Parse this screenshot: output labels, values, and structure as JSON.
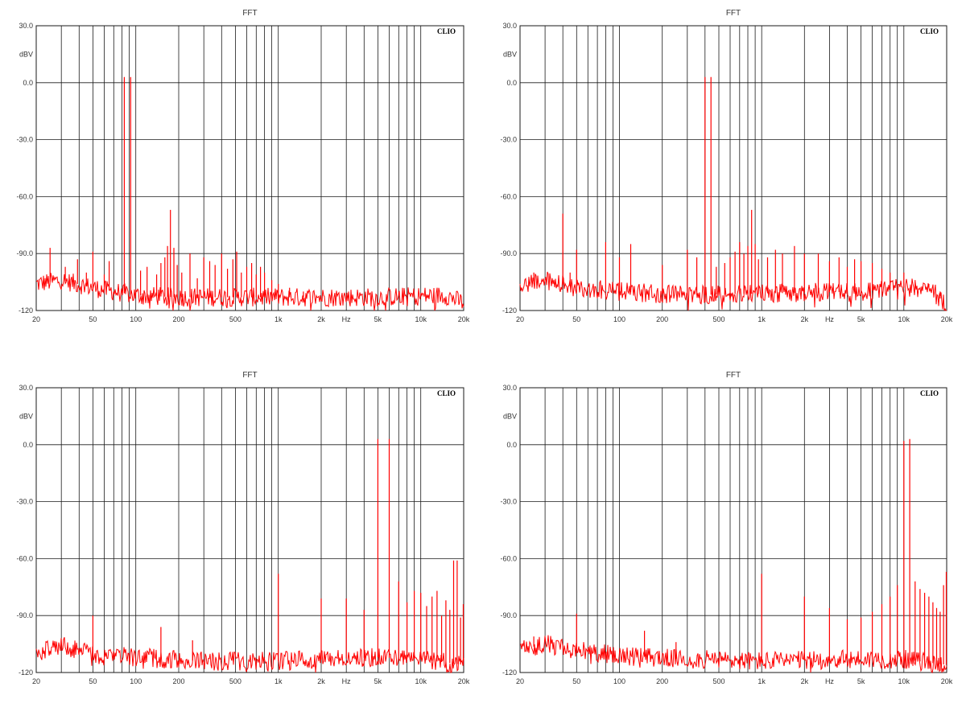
{
  "colors": {
    "trace": "#ff0000",
    "grid": "#1a1a1a",
    "background": "#ffffff"
  },
  "chart_data": [
    {
      "type": "line",
      "title": "FFT",
      "brand": "CLIO",
      "ylabel": "dBV",
      "xlabel": "Hz",
      "xscale": "log",
      "xlim": [
        20,
        20000
      ],
      "ylim": [
        -120,
        30
      ],
      "yticks": [
        30,
        0,
        -30,
        -60,
        -90,
        -120
      ],
      "ytick_labels": [
        "30.0",
        "0.0",
        "-30.0",
        "-60.0",
        "-90.0",
        "-120"
      ],
      "xtick_labels": [
        {
          "f": 20,
          "label": "20"
        },
        {
          "f": 50,
          "label": "50"
        },
        {
          "f": 100,
          "label": "100"
        },
        {
          "f": 200,
          "label": "200"
        },
        {
          "f": 500,
          "label": "500"
        },
        {
          "f": 1000,
          "label": "1k"
        },
        {
          "f": 2000,
          "label": "2k"
        },
        {
          "f": 5000,
          "label": "5k"
        },
        {
          "f": 10000,
          "label": "10k"
        },
        {
          "f": 20000,
          "label": "20k"
        }
      ],
      "grid": true,
      "noise": {
        "points": [
          [
            20,
            -106
          ],
          [
            30,
            -104
          ],
          [
            50,
            -108
          ],
          [
            100,
            -112
          ],
          [
            200,
            -113
          ],
          [
            1000,
            -113
          ],
          [
            5000,
            -113
          ],
          [
            15000,
            -112
          ],
          [
            20000,
            -116
          ]
        ],
        "spread": 5
      },
      "peaks": [
        [
          25,
          -87
        ],
        [
          32,
          -97
        ],
        [
          39,
          -93
        ],
        [
          45,
          -100
        ],
        [
          50,
          -89
        ],
        [
          60,
          -101
        ],
        [
          65,
          -94
        ],
        [
          83,
          3
        ],
        [
          92,
          3
        ],
        [
          108,
          -99
        ],
        [
          120,
          -97
        ],
        [
          140,
          -101
        ],
        [
          150,
          -95
        ],
        [
          160,
          -92
        ],
        [
          167,
          -86
        ],
        [
          175,
          -67
        ],
        [
          185,
          -87
        ],
        [
          195,
          -96
        ],
        [
          210,
          -100
        ],
        [
          240,
          -90
        ],
        [
          270,
          -103
        ],
        [
          300,
          -92
        ],
        [
          330,
          -94
        ],
        [
          360,
          -96
        ],
        [
          400,
          -90
        ],
        [
          440,
          -98
        ],
        [
          480,
          -93
        ],
        [
          510,
          -89
        ],
        [
          550,
          -100
        ],
        [
          600,
          -97
        ],
        [
          650,
          -95
        ],
        [
          700,
          -101
        ],
        [
          750,
          -97
        ],
        [
          800,
          -100
        ],
        [
          900,
          -104
        ],
        [
          1000,
          -106
        ],
        [
          1200,
          -108
        ],
        [
          1500,
          -110
        ]
      ]
    },
    {
      "type": "line",
      "title": "FFT",
      "brand": "CLIO",
      "ylabel": "dBV",
      "xlabel": "Hz",
      "xscale": "log",
      "xlim": [
        20,
        20000
      ],
      "ylim": [
        -120,
        30
      ],
      "yticks": [
        30,
        0,
        -30,
        -60,
        -90,
        -120
      ],
      "ytick_labels": [
        "30.0",
        "0.0",
        "-30.0",
        "-60.0",
        "-90.0",
        "-120"
      ],
      "xtick_labels": [
        {
          "f": 20,
          "label": "20"
        },
        {
          "f": 50,
          "label": "50"
        },
        {
          "f": 100,
          "label": "100"
        },
        {
          "f": 200,
          "label": "200"
        },
        {
          "f": 500,
          "label": "500"
        },
        {
          "f": 1000,
          "label": "1k"
        },
        {
          "f": 2000,
          "label": "2k"
        },
        {
          "f": 5000,
          "label": "5k"
        },
        {
          "f": 10000,
          "label": "10k"
        },
        {
          "f": 20000,
          "label": "20k"
        }
      ],
      "grid": true,
      "noise": {
        "points": [
          [
            20,
            -108
          ],
          [
            30,
            -104
          ],
          [
            50,
            -108
          ],
          [
            100,
            -110
          ],
          [
            300,
            -112
          ],
          [
            1000,
            -111
          ],
          [
            5000,
            -110
          ],
          [
            10000,
            -108
          ],
          [
            15000,
            -108
          ],
          [
            20000,
            -117
          ]
        ],
        "spread": 5
      },
      "peaks": [
        [
          25,
          -100
        ],
        [
          40,
          -69
        ],
        [
          45,
          -100
        ],
        [
          50,
          -88
        ],
        [
          80,
          -84
        ],
        [
          100,
          -92
        ],
        [
          120,
          -85
        ],
        [
          200,
          -96
        ],
        [
          300,
          -88
        ],
        [
          350,
          -92
        ],
        [
          400,
          3
        ],
        [
          440,
          3
        ],
        [
          480,
          -97
        ],
        [
          550,
          -95
        ],
        [
          600,
          -92
        ],
        [
          650,
          -89
        ],
        [
          700,
          -84
        ],
        [
          750,
          -90
        ],
        [
          800,
          -86
        ],
        [
          850,
          -67
        ],
        [
          900,
          -85
        ],
        [
          950,
          -93
        ],
        [
          1100,
          -92
        ],
        [
          1250,
          -88
        ],
        [
          1400,
          -90
        ],
        [
          1700,
          -86
        ],
        [
          2000,
          -90
        ],
        [
          2500,
          -90
        ],
        [
          3000,
          -94
        ],
        [
          3500,
          -92
        ],
        [
          4000,
          -97
        ],
        [
          4500,
          -93
        ],
        [
          5000,
          -94
        ],
        [
          6000,
          -95
        ],
        [
          7000,
          -98
        ],
        [
          8000,
          -100
        ],
        [
          10000,
          -100
        ],
        [
          12000,
          -104
        ],
        [
          15000,
          -106
        ],
        [
          18000,
          -110
        ]
      ]
    },
    {
      "type": "line",
      "title": "FFT",
      "brand": "CLIO",
      "ylabel": "dBV",
      "xlabel": "Hz",
      "xscale": "log",
      "xlim": [
        20,
        20000
      ],
      "ylim": [
        -120,
        30
      ],
      "yticks": [
        30,
        0,
        -30,
        -60,
        -90,
        -120
      ],
      "ytick_labels": [
        "30.0",
        "0.0",
        "-30.0",
        "-60.0",
        "-90.0",
        "-120"
      ],
      "xtick_labels": [
        {
          "f": 20,
          "label": "20"
        },
        {
          "f": 50,
          "label": "50"
        },
        {
          "f": 100,
          "label": "100"
        },
        {
          "f": 200,
          "label": "200"
        },
        {
          "f": 500,
          "label": "500"
        },
        {
          "f": 1000,
          "label": "1k"
        },
        {
          "f": 2000,
          "label": "2k"
        },
        {
          "f": 5000,
          "label": "5k"
        },
        {
          "f": 10000,
          "label": "10k"
        },
        {
          "f": 20000,
          "label": "20k"
        }
      ],
      "grid": true,
      "noise": {
        "points": [
          [
            20,
            -110
          ],
          [
            30,
            -106
          ],
          [
            50,
            -110
          ],
          [
            100,
            -112
          ],
          [
            300,
            -114
          ],
          [
            1000,
            -114
          ],
          [
            5000,
            -112
          ],
          [
            10000,
            -113
          ],
          [
            20000,
            -116
          ]
        ],
        "spread": 5
      },
      "peaks": [
        [
          50,
          -90
        ],
        [
          150,
          -96
        ],
        [
          250,
          -103
        ],
        [
          1000,
          -68
        ],
        [
          2000,
          -81
        ],
        [
          3000,
          -81
        ],
        [
          4000,
          -87
        ],
        [
          5000,
          3
        ],
        [
          6000,
          3
        ],
        [
          7000,
          -72
        ],
        [
          8000,
          -83
        ],
        [
          9000,
          -77
        ],
        [
          10000,
          -78
        ],
        [
          11000,
          -85
        ],
        [
          12000,
          -80
        ],
        [
          13000,
          -77
        ],
        [
          14000,
          -90
        ],
        [
          15000,
          -82
        ],
        [
          16000,
          -87
        ],
        [
          17000,
          -61
        ],
        [
          18000,
          -61
        ],
        [
          19000,
          -91
        ],
        [
          20000,
          -84
        ]
      ]
    },
    {
      "type": "line",
      "title": "FFT",
      "brand": "CLIO",
      "ylabel": "dBV",
      "xlabel": "Hz",
      "xscale": "log",
      "xlim": [
        20,
        20000
      ],
      "ylim": [
        -120,
        30
      ],
      "yticks": [
        30,
        0,
        -30,
        -60,
        -90,
        -120
      ],
      "ytick_labels": [
        "30.0",
        "0.0",
        "-30.0",
        "-60.0",
        "-90.0",
        "-120"
      ],
      "xtick_labels": [
        {
          "f": 20,
          "label": "20"
        },
        {
          "f": 50,
          "label": "50"
        },
        {
          "f": 100,
          "label": "100"
        },
        {
          "f": 200,
          "label": "200"
        },
        {
          "f": 500,
          "label": "500"
        },
        {
          "f": 1000,
          "label": "1k"
        },
        {
          "f": 2000,
          "label": "2k"
        },
        {
          "f": 5000,
          "label": "5k"
        },
        {
          "f": 10000,
          "label": "10k"
        },
        {
          "f": 20000,
          "label": "20k"
        }
      ],
      "grid": true,
      "noise": {
        "points": [
          [
            20,
            -108
          ],
          [
            30,
            -105
          ],
          [
            50,
            -108
          ],
          [
            100,
            -111
          ],
          [
            300,
            -113
          ],
          [
            1000,
            -114
          ],
          [
            5000,
            -113
          ],
          [
            10000,
            -113
          ],
          [
            20000,
            -116
          ]
        ],
        "spread": 5
      },
      "peaks": [
        [
          25,
          -101
        ],
        [
          50,
          -89
        ],
        [
          150,
          -98
        ],
        [
          250,
          -104
        ],
        [
          1000,
          -68
        ],
        [
          2000,
          -80
        ],
        [
          3000,
          -86
        ],
        [
          4000,
          -92
        ],
        [
          5000,
          -91
        ],
        [
          6000,
          -88
        ],
        [
          7000,
          -84
        ],
        [
          8000,
          -80
        ],
        [
          9000,
          -74
        ],
        [
          10000,
          2
        ],
        [
          11000,
          3
        ],
        [
          12000,
          -72
        ],
        [
          13000,
          -76
        ],
        [
          14000,
          -78
        ],
        [
          15000,
          -80
        ],
        [
          16000,
          -83
        ],
        [
          17000,
          -86
        ],
        [
          18000,
          -88
        ],
        [
          19000,
          -74
        ],
        [
          20000,
          -67
        ]
      ]
    }
  ]
}
